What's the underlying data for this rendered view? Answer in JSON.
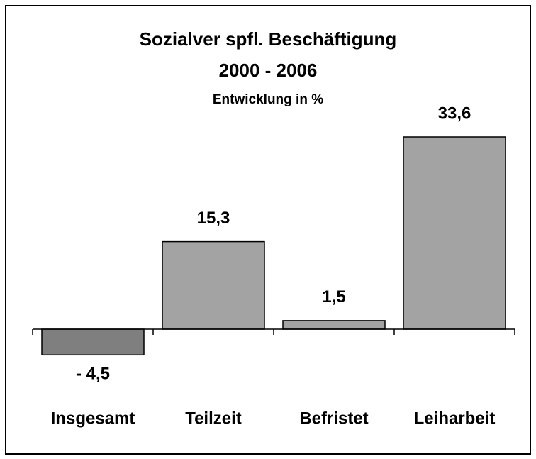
{
  "chart_data": {
    "type": "bar",
    "title": "Sozialver spfl. Beschäftigung",
    "subtitle": "2000 - 2006",
    "annotation": "Entwicklung in %",
    "categories": [
      "Insgesamt",
      "Teilzeit",
      "Befristet",
      "Leiharbeit"
    ],
    "values": [
      -4.5,
      15.3,
      1.5,
      33.6
    ],
    "value_labels": [
      "- 4,5",
      "15,3",
      "1,5",
      "33,6"
    ],
    "colors": [
      "#7f7f7f",
      "#a3a3a3",
      "#a3a3a3",
      "#a3a3a3"
    ]
  }
}
